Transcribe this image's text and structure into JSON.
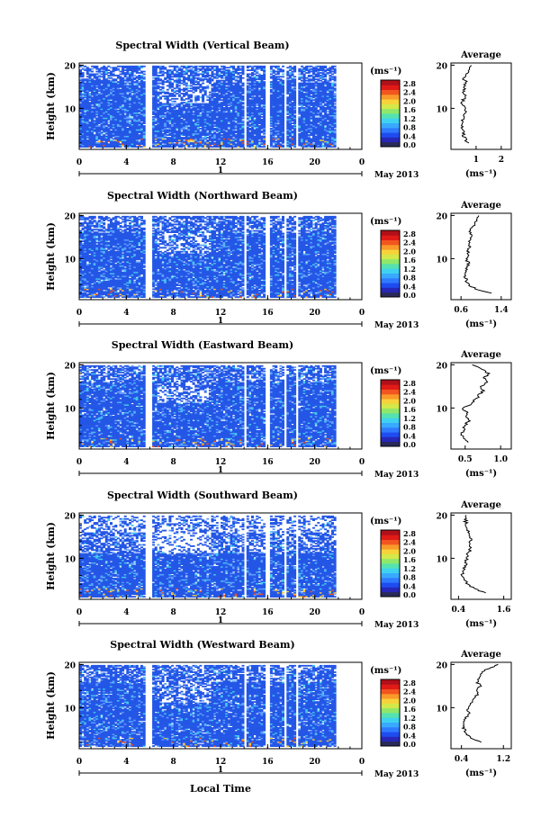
{
  "colors": {
    "colorbar": [
      "#2a2a5a",
      "#2727b8",
      "#1f4cf0",
      "#2f7bff",
      "#39a9ff",
      "#3fd2f0",
      "#55e2b0",
      "#8fe86a",
      "#d4e84a",
      "#f7d23a",
      "#f99a2a",
      "#f2551f",
      "#e01b17",
      "#b0101a"
    ],
    "field_blue": "#2456e6",
    "field_light": "#5fa0ff",
    "field_cyan": "#45c8ee",
    "hot": "#e8501f",
    "hot2": "#f8c83a"
  },
  "xlabel": "Local Time",
  "date_label": "May 2013",
  "day_label": "1",
  "avg_title": "Average",
  "unit_label": "(ms⁻¹)",
  "ylabel": "Height (km)",
  "chart_data": [
    {
      "type": "heatmap",
      "title": "Spectral Width (Vertical Beam)",
      "x_ticks": [
        "0",
        "4",
        "8",
        "12",
        "16",
        "20",
        "0"
      ],
      "y_ticks": [
        "20",
        "10"
      ],
      "colorbar_ticks": [
        "2.8",
        "2.4",
        "2.0",
        "1.6",
        "1.2",
        "0.8",
        "0.4",
        "0.0"
      ],
      "avg_x_ticks": [
        "1",
        "2"
      ],
      "avg_xlim": [
        0,
        2.4
      ],
      "avg_profile": [
        [
          2,
          0.7
        ],
        [
          3,
          0.55
        ],
        [
          4,
          0.5
        ],
        [
          5,
          0.45
        ],
        [
          6,
          0.42
        ],
        [
          7,
          0.45
        ],
        [
          8,
          0.5
        ],
        [
          9,
          0.55
        ],
        [
          10,
          0.6
        ],
        [
          11,
          0.45
        ],
        [
          12,
          0.5
        ],
        [
          13,
          0.55
        ],
        [
          14,
          0.5
        ],
        [
          15,
          0.55
        ],
        [
          16,
          0.6
        ],
        [
          17,
          0.5
        ],
        [
          18,
          0.6
        ],
        [
          19,
          0.7
        ],
        [
          20,
          0.8
        ]
      ]
    },
    {
      "type": "heatmap",
      "title": "Spectral Width (Northward Beam)",
      "x_ticks": [
        "0",
        "4",
        "8",
        "12",
        "16",
        "20",
        "0"
      ],
      "y_ticks": [
        "20",
        "10"
      ],
      "colorbar_ticks": [
        "2.8",
        "2.4",
        "2.0",
        "1.6",
        "1.2",
        "0.8",
        "0.4",
        "0.0"
      ],
      "avg_x_ticks": [
        "0.6",
        "1.4"
      ],
      "avg_xlim": [
        0.4,
        1.6
      ],
      "avg_profile": [
        [
          2,
          1.2
        ],
        [
          3,
          0.9
        ],
        [
          4,
          0.75
        ],
        [
          5,
          0.7
        ],
        [
          6,
          0.68
        ],
        [
          7,
          0.7
        ],
        [
          8,
          0.72
        ],
        [
          9,
          0.74
        ],
        [
          10,
          0.7
        ],
        [
          11,
          0.75
        ],
        [
          12,
          0.72
        ],
        [
          13,
          0.78
        ],
        [
          14,
          0.76
        ],
        [
          15,
          0.8
        ],
        [
          16,
          0.78
        ],
        [
          17,
          0.82
        ],
        [
          18,
          0.85
        ],
        [
          19,
          0.9
        ],
        [
          20,
          0.95
        ]
      ]
    },
    {
      "type": "heatmap",
      "title": "Spectral Width (Eastward Beam)",
      "x_ticks": [
        "0",
        "4",
        "8",
        "12",
        "16",
        "20",
        "0"
      ],
      "y_ticks": [
        "20",
        "10"
      ],
      "colorbar_ticks": [
        "2.8",
        "2.4",
        "2.0",
        "1.6",
        "1.2",
        "0.8",
        "0.4",
        "0.0"
      ],
      "avg_x_ticks": [
        "0.5",
        "1.0"
      ],
      "avg_xlim": [
        0.3,
        1.15
      ],
      "avg_profile": [
        [
          2,
          0.55
        ],
        [
          3,
          0.5
        ],
        [
          4,
          0.45
        ],
        [
          5,
          0.48
        ],
        [
          6,
          0.5
        ],
        [
          7,
          0.55
        ],
        [
          8,
          0.5
        ],
        [
          9,
          0.55
        ],
        [
          10,
          0.45
        ],
        [
          11,
          0.6
        ],
        [
          12,
          0.65
        ],
        [
          13,
          0.7
        ],
        [
          14,
          0.75
        ],
        [
          15,
          0.72
        ],
        [
          16,
          0.8
        ],
        [
          17,
          0.78
        ],
        [
          18,
          0.82
        ],
        [
          19,
          0.75
        ],
        [
          20,
          0.6
        ]
      ]
    },
    {
      "type": "heatmap",
      "title": "Spectral Width (Southward Beam)",
      "x_ticks": [
        "0",
        "4",
        "8",
        "12",
        "16",
        "20",
        "0"
      ],
      "y_ticks": [
        "20",
        "10"
      ],
      "colorbar_ticks": [
        "2.8",
        "2.4",
        "2.0",
        "1.6",
        "1.2",
        "0.8",
        "0.4",
        "0.0"
      ],
      "avg_x_ticks": [
        "0.4",
        "1.6"
      ],
      "avg_xlim": [
        0.2,
        1.8
      ],
      "avg_profile": [
        [
          2,
          1.1
        ],
        [
          3,
          0.8
        ],
        [
          4,
          0.65
        ],
        [
          5,
          0.55
        ],
        [
          6,
          0.5
        ],
        [
          7,
          0.52
        ],
        [
          8,
          0.55
        ],
        [
          9,
          0.6
        ],
        [
          10,
          0.62
        ],
        [
          11,
          0.65
        ],
        [
          12,
          0.7
        ],
        [
          13,
          0.68
        ],
        [
          14,
          0.72
        ],
        [
          15,
          0.7
        ],
        [
          16,
          0.65
        ],
        [
          17,
          0.62
        ],
        [
          18,
          0.6
        ],
        [
          19,
          0.58
        ],
        [
          20,
          0.6
        ]
      ]
    },
    {
      "type": "heatmap",
      "title": "Spectral Width (Westward Beam)",
      "x_ticks": [
        "0",
        "4",
        "8",
        "12",
        "16",
        "20",
        "0"
      ],
      "y_ticks": [
        "20",
        "10"
      ],
      "colorbar_ticks": [
        "2.8",
        "2.4",
        "2.0",
        "1.6",
        "1.2",
        "0.8",
        "0.4",
        "0.0"
      ],
      "avg_x_ticks": [
        "0.4",
        "1.2"
      ],
      "avg_xlim": [
        0.2,
        1.35
      ],
      "avg_profile": [
        [
          2,
          0.8
        ],
        [
          3,
          0.6
        ],
        [
          4,
          0.5
        ],
        [
          5,
          0.45
        ],
        [
          6,
          0.42
        ],
        [
          7,
          0.45
        ],
        [
          8,
          0.5
        ],
        [
          9,
          0.55
        ],
        [
          10,
          0.52
        ],
        [
          11,
          0.6
        ],
        [
          12,
          0.65
        ],
        [
          13,
          0.7
        ],
        [
          14,
          0.68
        ],
        [
          15,
          0.75
        ],
        [
          16,
          0.7
        ],
        [
          17,
          0.72
        ],
        [
          18,
          0.8
        ],
        [
          19,
          0.9
        ],
        [
          20,
          1.1
        ]
      ]
    }
  ]
}
